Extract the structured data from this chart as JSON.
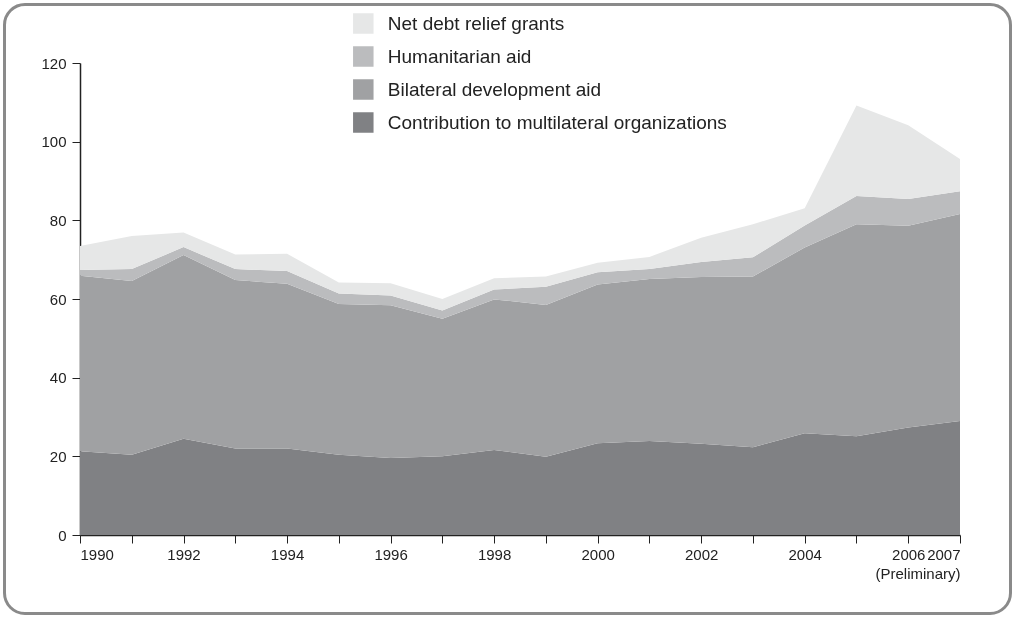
{
  "chart_data": {
    "type": "area",
    "stacked": true,
    "x": [
      1990,
      1991,
      1992,
      1993,
      1994,
      1995,
      1996,
      1997,
      1998,
      1999,
      2000,
      2001,
      2002,
      2003,
      2004,
      2005,
      2006,
      2007
    ],
    "series": [
      {
        "name": "Contribution to multilateral organizations",
        "color": "#808184",
        "values": [
          21.3,
          20.4,
          24.5,
          22.0,
          22.0,
          20.4,
          19.6,
          20.0,
          21.6,
          19.9,
          23.3,
          23.9,
          23.2,
          22.3,
          25.9,
          25.1,
          27.3,
          29.0
        ]
      },
      {
        "name": "Bilateral development aid",
        "color": "#a0a1a3",
        "values": [
          44.6,
          44.2,
          46.7,
          42.8,
          41.9,
          38.3,
          38.8,
          35.0,
          38.3,
          38.6,
          40.4,
          41.2,
          42.4,
          43.4,
          47.2,
          53.9,
          51.3,
          52.6
        ]
      },
      {
        "name": "Humanitarian aid",
        "color": "#bbbcbe",
        "values": [
          1.5,
          3.0,
          2.0,
          2.8,
          3.2,
          2.7,
          2.5,
          2.1,
          2.5,
          4.6,
          3.1,
          2.5,
          3.8,
          4.9,
          5.6,
          7.2,
          6.8,
          5.8
        ]
      },
      {
        "name": "Net debt relief grants",
        "color": "#e6e7e7",
        "values": [
          6.1,
          8.4,
          3.7,
          3.7,
          4.4,
          2.8,
          3.1,
          2.9,
          2.9,
          2.6,
          2.4,
          3.1,
          6.2,
          8.4,
          4.4,
          23.0,
          18.8,
          8.2
        ]
      }
    ],
    "xlim": [
      1990,
      2007
    ],
    "xticks": [
      1990,
      {
        "value": 1991,
        "label": null
      },
      1992,
      {
        "value": 1993,
        "label": null
      },
      1994,
      {
        "value": 1995,
        "label": null
      },
      1996,
      {
        "value": 1997,
        "label": null
      },
      1998,
      {
        "value": 1999,
        "label": null
      },
      2000,
      {
        "value": 2001,
        "label": null
      },
      2002,
      {
        "value": 2003,
        "label": null
      },
      2004,
      {
        "value": 2005,
        "label": null
      },
      2006,
      {
        "value": 2007,
        "label": "2007\n(Preliminary)"
      }
    ],
    "ylim": [
      0,
      120
    ],
    "yticks": [
      0,
      20,
      40,
      60,
      80,
      100,
      120
    ],
    "legend": "top",
    "grid": false
  }
}
